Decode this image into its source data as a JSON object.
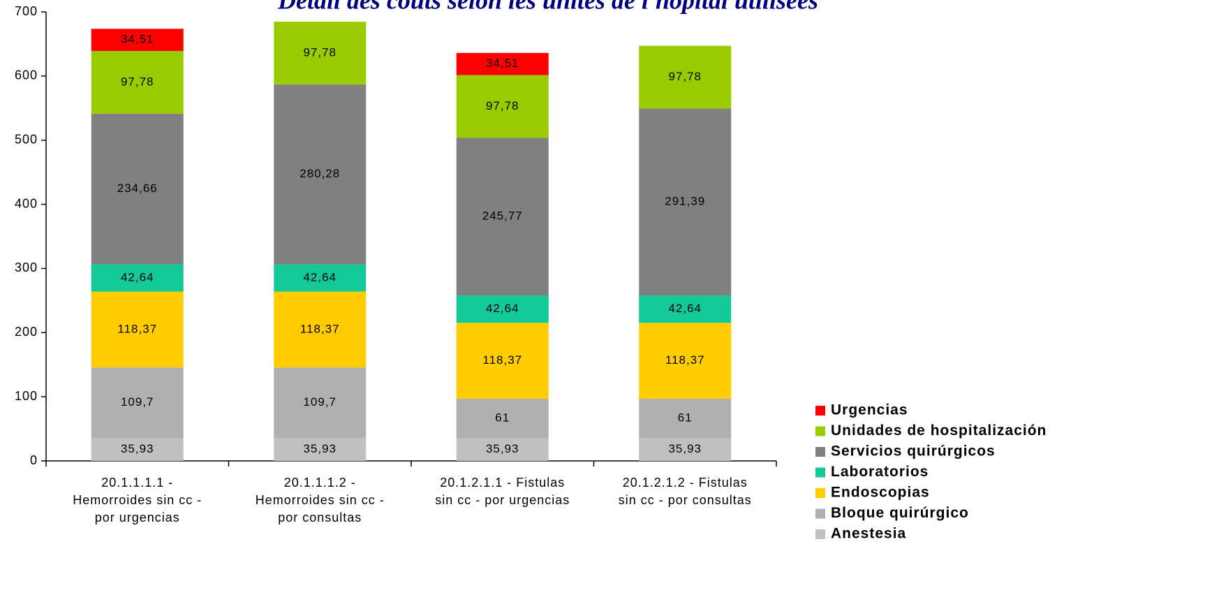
{
  "chart_data": {
    "type": "stacked_bar",
    "title": "Détail des coûts selon les unités de l'hôpital utilisées",
    "categories": [
      "20.1.1.1.1 - Hemorroides sin cc - por urgencias",
      "20.1.1.1.2 - Hemorroides sin cc - por consultas",
      "20.1.2.1.1 - Fistulas sin cc - por urgencias",
      "20.1.2.1.2 - Fistulas sin cc - por consultas"
    ],
    "series": [
      {
        "name": "Anestesia",
        "color": "#c0c0c0",
        "values": [
          35.93,
          35.93,
          35.93,
          35.93
        ],
        "value_labels": [
          "35,93",
          "35,93",
          "35,93",
          "35,93"
        ]
      },
      {
        "name": "Bloque quirúrgico",
        "color": "#b0b0b0",
        "values": [
          109.7,
          109.7,
          61,
          61
        ],
        "value_labels": [
          "109,7",
          "109,7",
          "61",
          "61"
        ]
      },
      {
        "name": "Endoscopias",
        "color": "#ffcc00",
        "values": [
          118.37,
          118.37,
          118.37,
          118.37
        ],
        "value_labels": [
          "118,37",
          "118,37",
          "118,37",
          "118,37"
        ]
      },
      {
        "name": "Laboratorios",
        "color": "#13c99a",
        "values": [
          42.64,
          42.64,
          42.64,
          42.64
        ],
        "value_labels": [
          "42,64",
          "42,64",
          "42,64",
          "42,64"
        ]
      },
      {
        "name": "Servicios quirúrgicos",
        "color": "#808080",
        "values": [
          234.66,
          280.28,
          245.77,
          291.39
        ],
        "value_labels": [
          "234,66",
          "280,28",
          "245,77",
          "291,39"
        ]
      },
      {
        "name": "Unidades de hospitalización",
        "color": "#99cc00",
        "values": [
          97.78,
          97.78,
          97.78,
          97.78
        ],
        "value_labels": [
          "97,78",
          "97,78",
          "97,78",
          "97,78"
        ]
      },
      {
        "name": "Urgencias",
        "color": "#ff0000",
        "values": [
          34.51,
          null,
          34.51,
          null
        ],
        "value_labels": [
          "34,51",
          null,
          "34,51",
          null
        ]
      }
    ],
    "ylim": [
      0,
      700
    ],
    "yticks": [
      0,
      100,
      200,
      300,
      400,
      500,
      600,
      700
    ],
    "grid": false,
    "legend": "right"
  }
}
